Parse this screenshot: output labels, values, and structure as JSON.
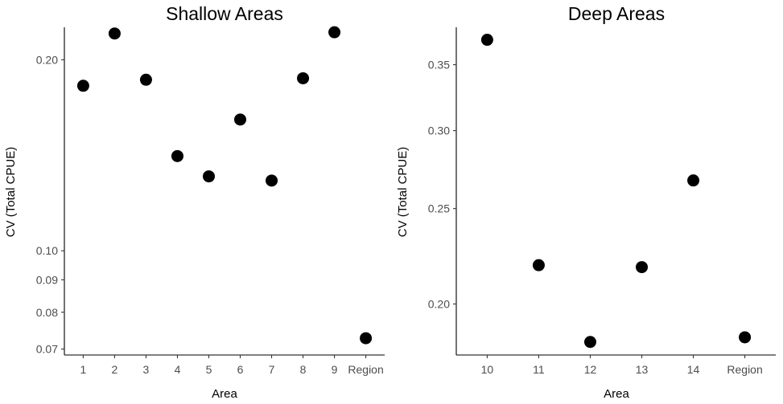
{
  "chart_data": [
    {
      "type": "scatter",
      "title": "Shallow Areas",
      "xlabel": "Area",
      "ylabel": "CV (Total CPUE)",
      "y_scale": "log",
      "ylim": [
        0.0685,
        0.225
      ],
      "y_ticks": [
        0.07,
        0.08,
        0.09,
        0.1,
        0.2
      ],
      "y_tick_labels": [
        "0.07",
        "0.08",
        "0.09",
        "0.10",
        "0.20"
      ],
      "categories": [
        "1",
        "2",
        "3",
        "4",
        "5",
        "6",
        "7",
        "8",
        "9",
        "Region"
      ],
      "values": [
        0.182,
        0.22,
        0.186,
        0.141,
        0.131,
        0.161,
        0.129,
        0.187,
        0.221,
        0.0728
      ],
      "grid": false,
      "point_color": "#000000"
    },
    {
      "type": "scatter",
      "title": "Deep Areas",
      "xlabel": "Area",
      "ylabel": "CV (Total CPUE)",
      "y_scale": "log",
      "ylim": [
        0.1775,
        0.382
      ],
      "y_ticks": [
        0.2,
        0.25,
        0.3,
        0.35
      ],
      "y_tick_labels": [
        "0.20",
        "0.25",
        "0.30",
        "0.35"
      ],
      "categories": [
        "10",
        "11",
        "12",
        "13",
        "14",
        "Region"
      ],
      "values": [
        0.371,
        0.219,
        0.183,
        0.218,
        0.267,
        0.185
      ],
      "grid": false,
      "point_color": "#000000"
    }
  ]
}
